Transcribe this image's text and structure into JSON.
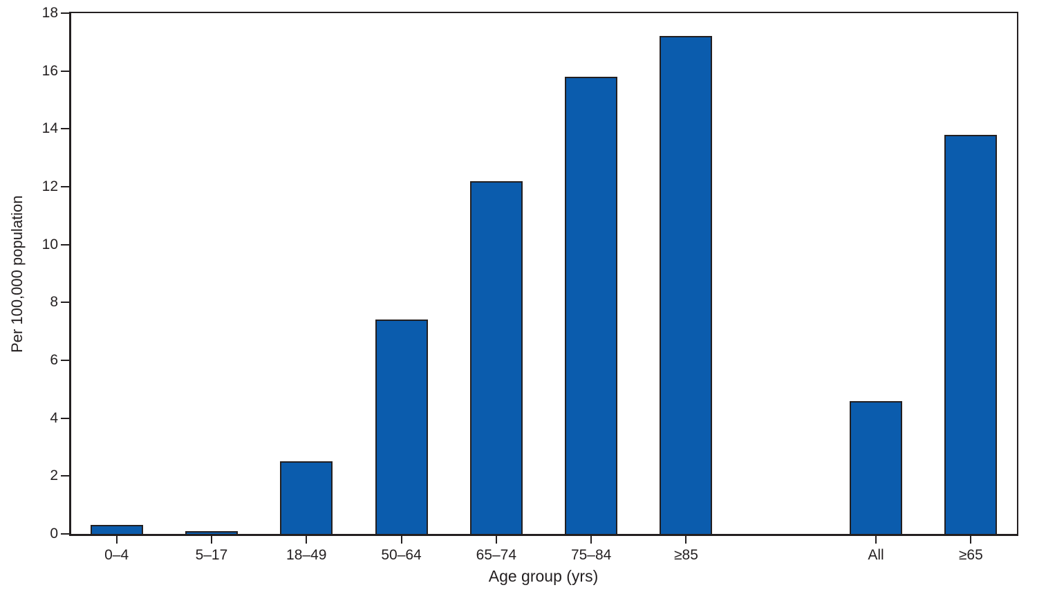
{
  "chart_data": {
    "type": "bar",
    "title": "",
    "xlabel": "Age group (yrs)",
    "ylabel": "Per 100,000 population",
    "categories": [
      "0–4",
      "5–17",
      "18–49",
      "50–64",
      "65–74",
      "75–84",
      "≥85",
      "All",
      "≥65"
    ],
    "values": [
      0.3,
      0.1,
      2.5,
      7.4,
      12.2,
      15.8,
      17.2,
      4.6,
      13.8
    ],
    "ylim": [
      0,
      18
    ],
    "ytick_step": 2,
    "ytick_labels": [
      "0",
      "2",
      "4",
      "6",
      "8",
      "10",
      "12",
      "14",
      "16",
      "18"
    ],
    "grid": "off",
    "legend": "none",
    "slot_indices": [
      0,
      1,
      2,
      3,
      4,
      5,
      6,
      8,
      9
    ],
    "slot_count": 10,
    "bar_fill": "#0B5CAD",
    "bar_border": "#231F20",
    "axis_color": "#231F20"
  }
}
